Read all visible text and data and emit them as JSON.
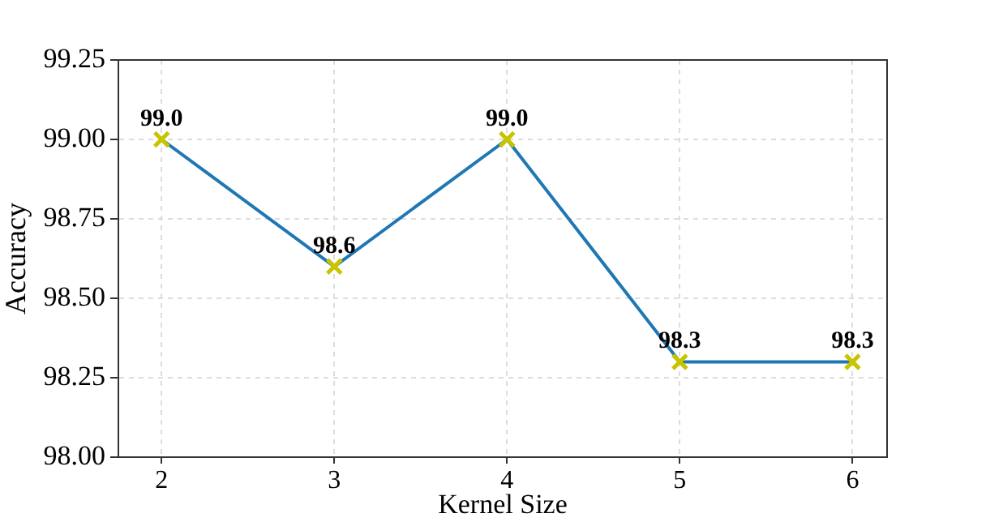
{
  "chart_data": {
    "type": "line",
    "xlabel": "Kernel Size",
    "ylabel": "Accuracy",
    "x": [
      2,
      3,
      4,
      5,
      6
    ],
    "series": [
      {
        "color": "#1f77b4",
        "values": [
          99.0,
          98.6,
          99.0,
          98.3,
          98.3
        ],
        "value_labels": [
          "99.0",
          "98.6",
          "99.0",
          "98.3",
          "98.3"
        ]
      }
    ],
    "xlim": [
      1.75,
      6.2
    ],
    "xticks": [
      2,
      3,
      4,
      5,
      6
    ],
    "ylim": [
      98,
      99.25
    ],
    "yticks": [
      {
        "value": 98,
        "label": "98.00"
      },
      {
        "value": 98.25,
        "label": "98.25"
      },
      {
        "value": 98.5,
        "label": "98.50"
      },
      {
        "value": 98.75,
        "label": "98.75"
      },
      {
        "value": 99,
        "label": "99.00"
      },
      {
        "value": 99.25,
        "label": "99.25"
      }
    ],
    "grid": true,
    "legend": false,
    "marker": "cross",
    "line_style": "solid"
  }
}
